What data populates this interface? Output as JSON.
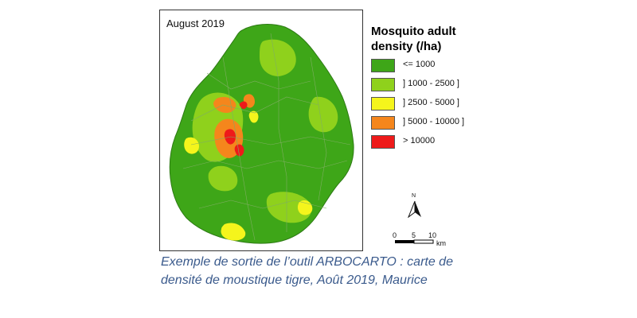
{
  "map": {
    "title": "August 2019",
    "legend": {
      "title": "Mosquito adult density (/ha)",
      "classes": [
        {
          "label": "<= 1000",
          "color": "#3ea618"
        },
        {
          "label": "] 1000 - 2500 ]",
          "color": "#8fd11c"
        },
        {
          "label": "] 2500 - 5000 ]",
          "color": "#f5f51c"
        },
        {
          "label": "] 5000 - 10000 ]",
          "color": "#f5861c"
        },
        {
          "label": "> 10000",
          "color": "#ee1a1a"
        }
      ]
    },
    "north_label": "N",
    "scale": {
      "ticks": [
        "0",
        "5",
        "10"
      ],
      "unit": "km"
    },
    "boundary_color": "#7fae63"
  },
  "caption": "Exemple de sortie de l’outil ARBOCARTO : carte de densité de moustique tigre, Août 2019, Maurice"
}
